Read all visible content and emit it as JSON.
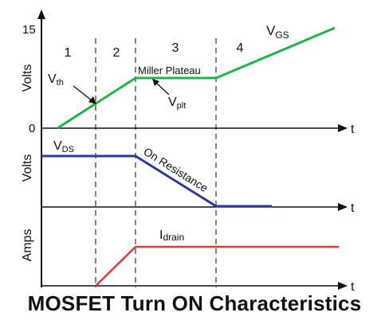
{
  "caption": "MOSFET Turn ON Characteristics",
  "colors": {
    "vgs": "#23b24b",
    "vds": "#2a3a9e",
    "idrain": "#e23a3a",
    "axis": "#111111",
    "divider": "#444444"
  },
  "regions": [
    "1",
    "2",
    "3",
    "4"
  ],
  "panels": {
    "top": {
      "ylabel": "Volts",
      "ymax_tick": "15",
      "ymin_tick": "0",
      "xlabel": "t",
      "curve_label_main": "V",
      "curve_label_sub": "GS",
      "vth_main": "V",
      "vth_sub": "th",
      "vplt_main": "V",
      "vplt_sub": "plt",
      "plateau_label": "Miller Plateau"
    },
    "middle": {
      "ylabel": "Volts",
      "xlabel": "t",
      "curve_label_main": "V",
      "curve_label_sub": "DS",
      "slope_label": "On Resistance"
    },
    "bottom": {
      "ylabel": "Amps",
      "xlabel": "t",
      "curve_label_main": "I",
      "curve_label_sub": "drain"
    }
  }
}
